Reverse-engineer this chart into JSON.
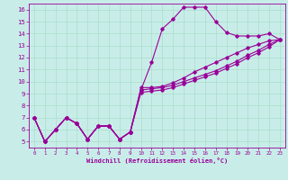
{
  "xlabel": "Windchill (Refroidissement éolien,°C)",
  "xlim": [
    -0.5,
    23.5
  ],
  "ylim": [
    4.5,
    16.5
  ],
  "xticks": [
    0,
    1,
    2,
    3,
    4,
    5,
    6,
    7,
    8,
    9,
    10,
    11,
    12,
    13,
    14,
    15,
    16,
    17,
    18,
    19,
    20,
    21,
    22,
    23
  ],
  "yticks": [
    5,
    6,
    7,
    8,
    9,
    10,
    11,
    12,
    13,
    14,
    15,
    16
  ],
  "bg_color": "#c8ede8",
  "grid_color": "#aaddcc",
  "line_color": "#990099",
  "line1_y": [
    7,
    5,
    6,
    7,
    6.5,
    5.2,
    6.3,
    6.3,
    5.2,
    5.8,
    9.3,
    11.6,
    14.4,
    15.2,
    16.2,
    16.2,
    16.2,
    15.0,
    14.1,
    13.8,
    13.8,
    13.8,
    14.0,
    13.5
  ],
  "line2_y": [
    7,
    5,
    6,
    7,
    6.5,
    5.2,
    6.3,
    6.3,
    5.2,
    5.8,
    9.5,
    9.5,
    9.6,
    9.9,
    10.3,
    10.8,
    11.2,
    11.6,
    12.0,
    12.4,
    12.8,
    13.1,
    13.4,
    13.5
  ],
  "line3_y": [
    7,
    5,
    6,
    7,
    6.5,
    5.2,
    6.3,
    6.3,
    5.2,
    5.8,
    9.3,
    9.4,
    9.5,
    9.7,
    10.0,
    10.3,
    10.6,
    10.9,
    11.3,
    11.7,
    12.2,
    12.6,
    13.1,
    13.5
  ],
  "line4_y": [
    7,
    5,
    6,
    7,
    6.5,
    5.2,
    6.3,
    6.3,
    5.2,
    5.8,
    9.1,
    9.2,
    9.3,
    9.5,
    9.8,
    10.1,
    10.4,
    10.7,
    11.1,
    11.5,
    12.0,
    12.4,
    12.9,
    13.5
  ],
  "xlabel_fontsize": 5.0,
  "tick_fontsize_x": 4.2,
  "tick_fontsize_y": 5.2
}
